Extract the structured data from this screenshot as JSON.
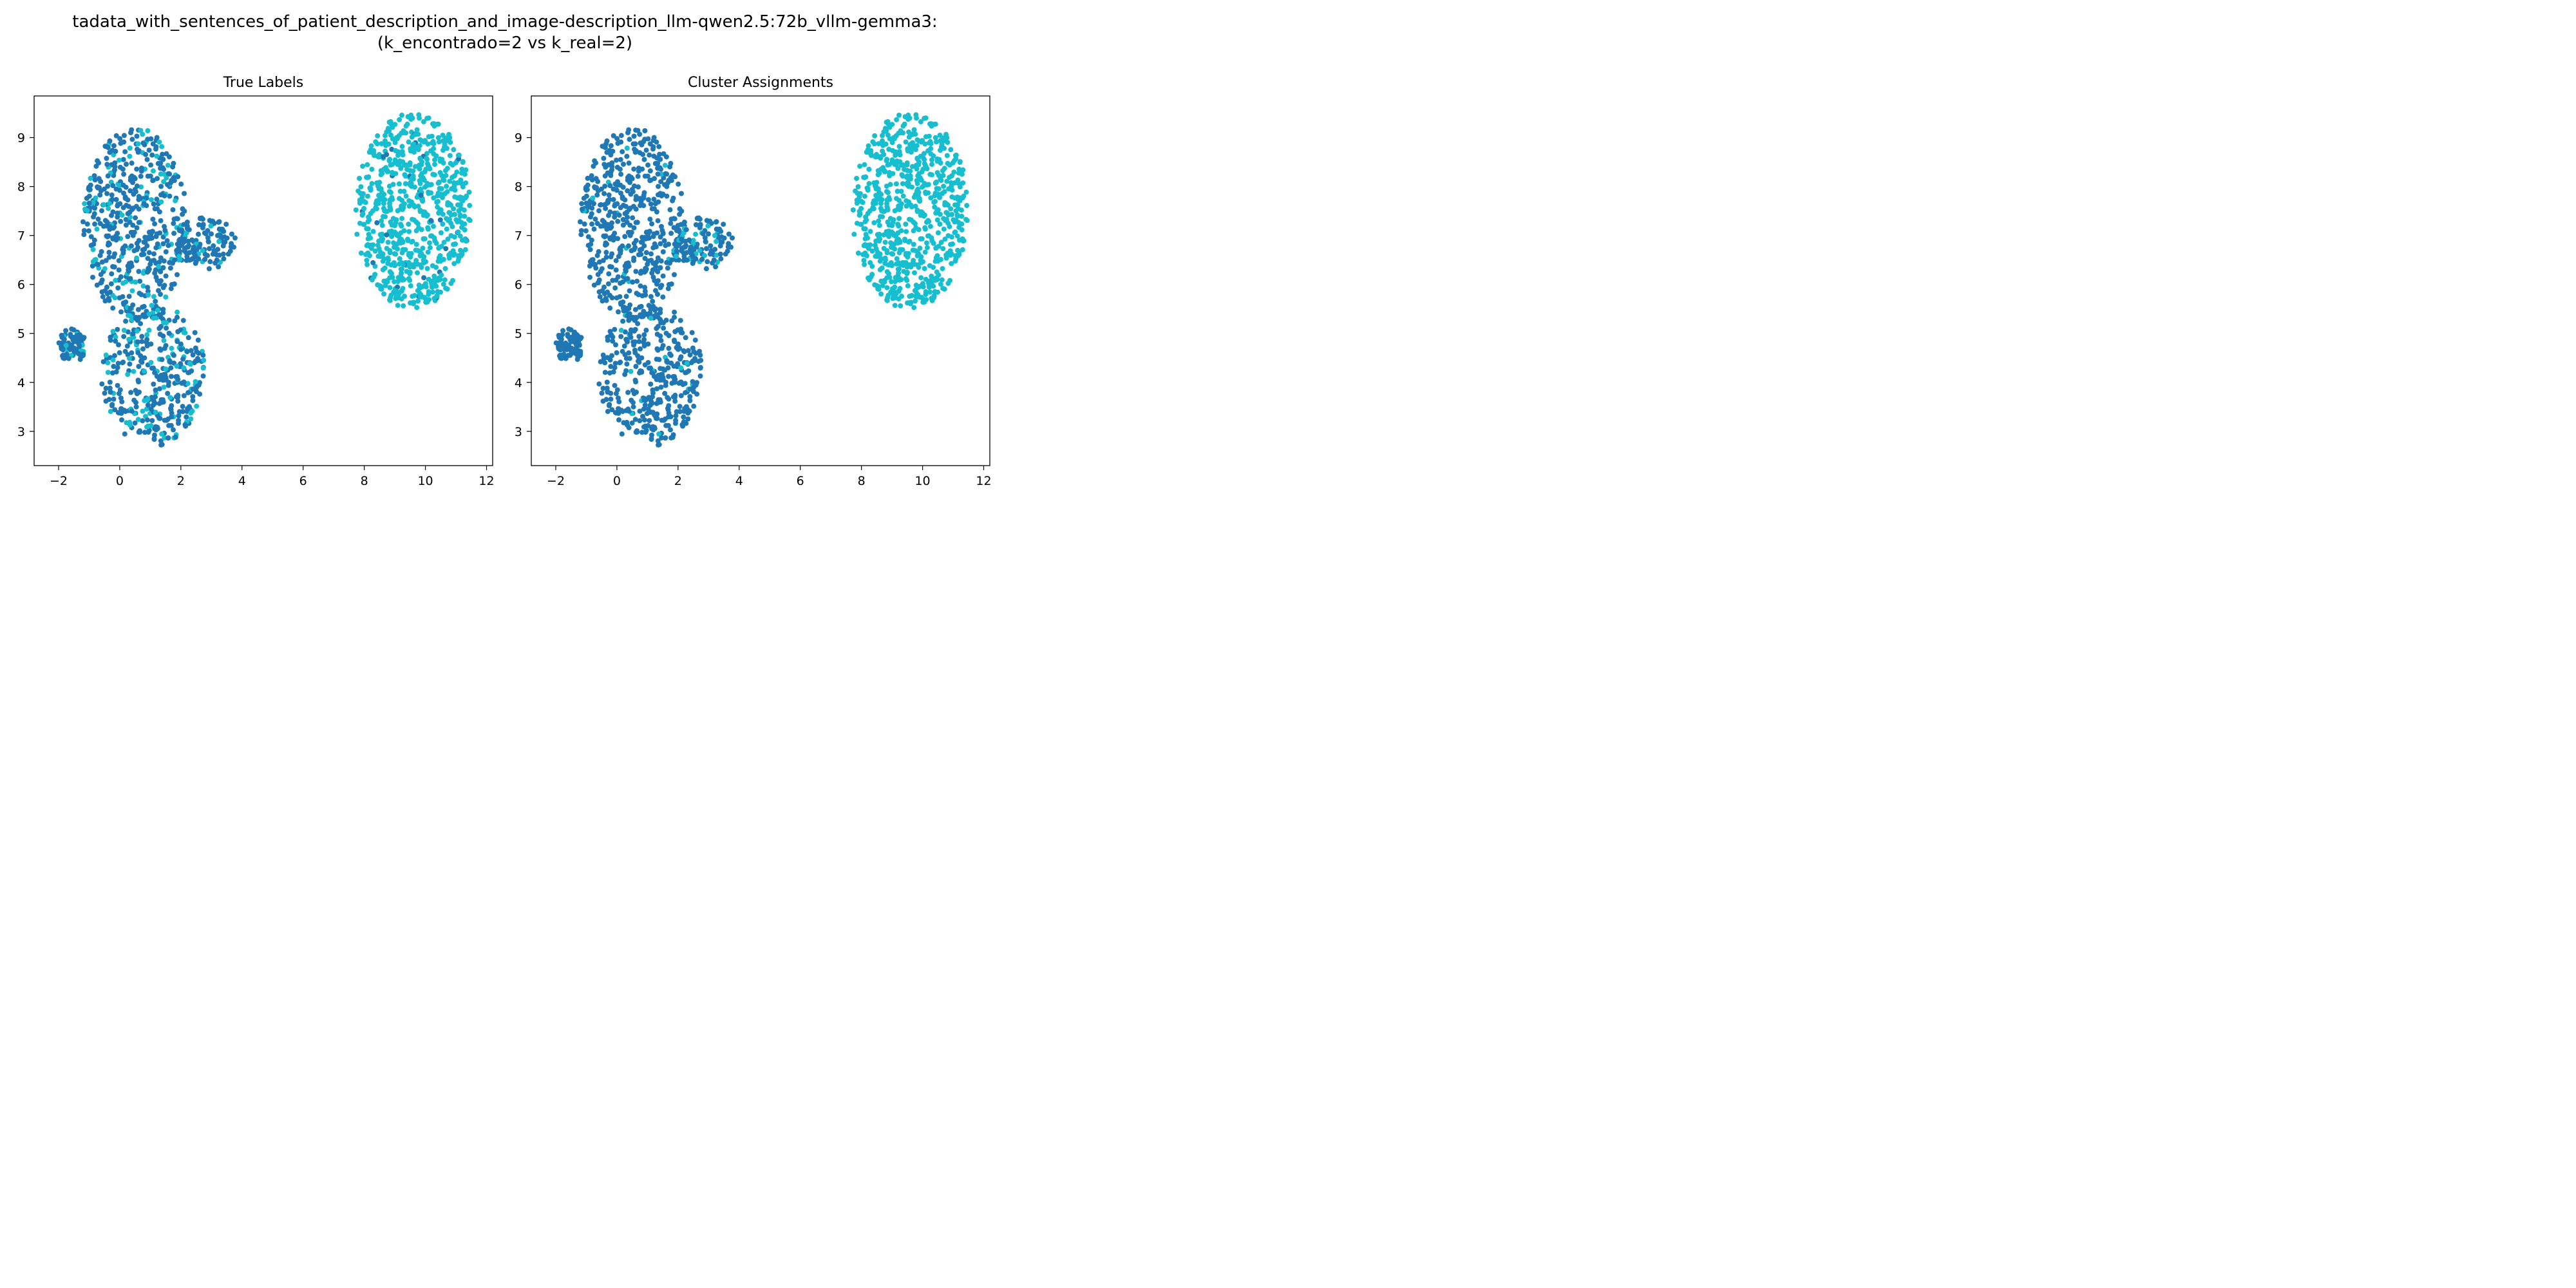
{
  "figure": {
    "title_line1": "tadata_with_sentences_of_patient_description_and_image-description_llm-qwen2.5:72b_vllm-gemma3:",
    "title_line2": "(k_encontrado=2 vs k_real=2)"
  },
  "colors": {
    "cluster_a": "#1f77b4",
    "cluster_b": "#17becf"
  },
  "chart_data": [
    {
      "type": "scatter",
      "title": "True Labels",
      "xlabel": "",
      "ylabel": "",
      "xlim": [
        -2.8,
        12.2
      ],
      "ylim": [
        2.3,
        9.85
      ],
      "xticks": [
        -2,
        0,
        2,
        4,
        6,
        8,
        10,
        12
      ],
      "yticks": [
        3,
        4,
        5,
        6,
        7,
        8,
        9
      ],
      "grid": false,
      "legend": "none",
      "mixing": "high",
      "groups": [
        {
          "name": "upper-left-body",
          "x_range": [
            -1.2,
            2.2
          ],
          "y_range": [
            5.3,
            9.2
          ],
          "count": 520,
          "mix_ratio": 0.2
        },
        {
          "name": "lower-left-body",
          "x_range": [
            -0.6,
            2.8
          ],
          "y_range": [
            2.7,
            5.6
          ],
          "count": 380,
          "mix_ratio": 0.22
        },
        {
          "name": "left-lobe",
          "x_range": [
            -2.0,
            -1.1
          ],
          "y_range": [
            4.4,
            5.1
          ],
          "count": 80,
          "mix_ratio": 0.1
        },
        {
          "name": "right-protrusion",
          "x_range": [
            1.8,
            3.8
          ],
          "y_range": [
            6.3,
            7.4
          ],
          "count": 120,
          "mix_ratio": 0.12
        },
        {
          "name": "right-cluster",
          "x_range": [
            7.7,
            11.5
          ],
          "y_range": [
            5.5,
            9.5
          ],
          "count": 720,
          "mix_ratio": 0.04
        }
      ]
    },
    {
      "type": "scatter",
      "title": "Cluster Assignments",
      "xlabel": "",
      "ylabel": "",
      "xlim": [
        -2.8,
        12.2
      ],
      "ylim": [
        2.3,
        9.85
      ],
      "xticks": [
        -2,
        0,
        2,
        4,
        6,
        8,
        10,
        12
      ],
      "yticks": [
        3,
        4,
        5,
        6,
        7,
        8,
        9
      ],
      "grid": false,
      "legend": "none",
      "mixing": "low",
      "groups": [
        {
          "name": "upper-left-body",
          "x_range": [
            -1.2,
            2.2
          ],
          "y_range": [
            5.3,
            9.2
          ],
          "count": 520,
          "mix_ratio": 0.02
        },
        {
          "name": "lower-left-body",
          "x_range": [
            -0.6,
            2.8
          ],
          "y_range": [
            2.7,
            5.6
          ],
          "count": 380,
          "mix_ratio": 0.03
        },
        {
          "name": "left-lobe",
          "x_range": [
            -2.0,
            -1.1
          ],
          "y_range": [
            4.4,
            5.1
          ],
          "count": 80,
          "mix_ratio": 0.0
        },
        {
          "name": "right-protrusion",
          "x_range": [
            1.8,
            3.8
          ],
          "y_range": [
            6.3,
            7.4
          ],
          "count": 120,
          "mix_ratio": 0.25
        },
        {
          "name": "right-cluster",
          "x_range": [
            7.7,
            11.5
          ],
          "y_range": [
            5.5,
            9.5
          ],
          "count": 720,
          "mix_ratio": 0.0
        }
      ]
    }
  ]
}
